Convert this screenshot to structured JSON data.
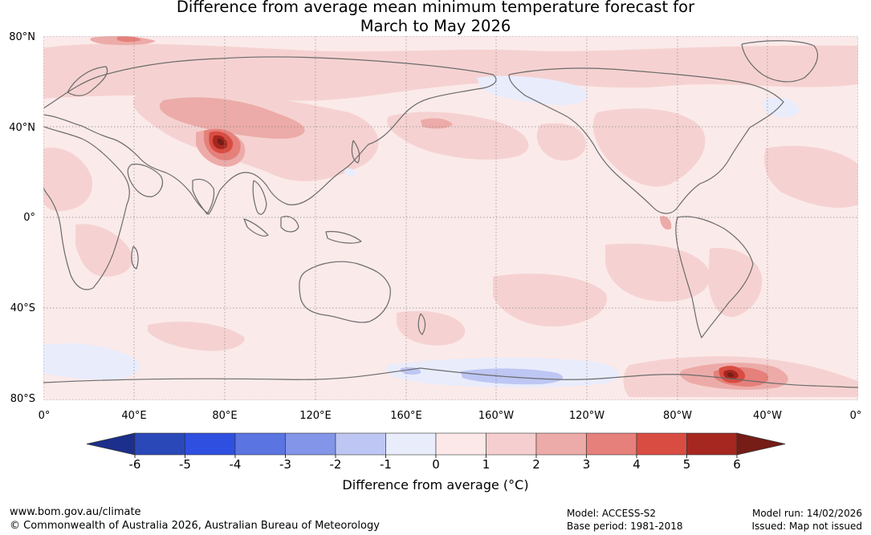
{
  "title": {
    "line1": "Difference from average mean minimum temperature forecast for",
    "line2": "March to May 2026"
  },
  "map": {
    "lat_labels": [
      "80°N",
      "40°N",
      "0°",
      "40°S",
      "80°S"
    ],
    "lon_labels": [
      "0°",
      "40°E",
      "80°E",
      "120°E",
      "160°E",
      "160°W",
      "120°W",
      "80°W",
      "40°W",
      "0°"
    ]
  },
  "colorbar": {
    "ticks": [
      "-6",
      "-5",
      "-4",
      "-3",
      "-2",
      "-1",
      "0",
      "1",
      "2",
      "3",
      "4",
      "5",
      "6"
    ],
    "colors": [
      "#1c2f8c",
      "#2a48b8",
      "#2f4fe0",
      "#5a74e2",
      "#8395e8",
      "#bec6f3",
      "#e9ecfb",
      "#fce8e8",
      "#f5cfcf",
      "#ecaba8",
      "#e5807b",
      "#d94c42",
      "#a6271f",
      "#751d16"
    ],
    "label": "Difference from average (°C)"
  },
  "footer": {
    "url": "www.bom.gov.au/climate",
    "copyright": "© Commonwealth of Australia 2026, Australian Bureau of Meteorology",
    "model": "Model: ACCESS-S2",
    "base_period": "Base period: 1981-2018",
    "model_run": "Model run: 14/02/2026",
    "issued": "Issued: Map not issued"
  }
}
